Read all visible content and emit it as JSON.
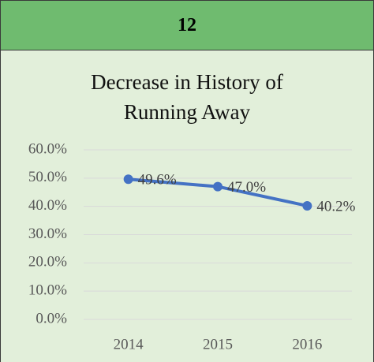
{
  "header": {
    "label": "12"
  },
  "chart_data": {
    "type": "line",
    "title": "Decrease in History of Running Away",
    "categories": [
      "2014",
      "2015",
      "2016"
    ],
    "values": [
      49.6,
      47.0,
      40.2
    ],
    "value_labels": [
      "49.6%",
      "47.0%",
      "40.2%"
    ],
    "color": "#4472c4",
    "ylim": [
      0,
      60
    ],
    "yticks": [
      {
        "value": 0,
        "label": "0.0%"
      },
      {
        "value": 10,
        "label": "10.0%"
      },
      {
        "value": 20,
        "label": "20.0%"
      },
      {
        "value": 30,
        "label": "30.0%"
      },
      {
        "value": 40,
        "label": "40.0%"
      },
      {
        "value": 50,
        "label": "50.0%"
      },
      {
        "value": 60,
        "label": "60.0%"
      }
    ],
    "grid": true
  }
}
